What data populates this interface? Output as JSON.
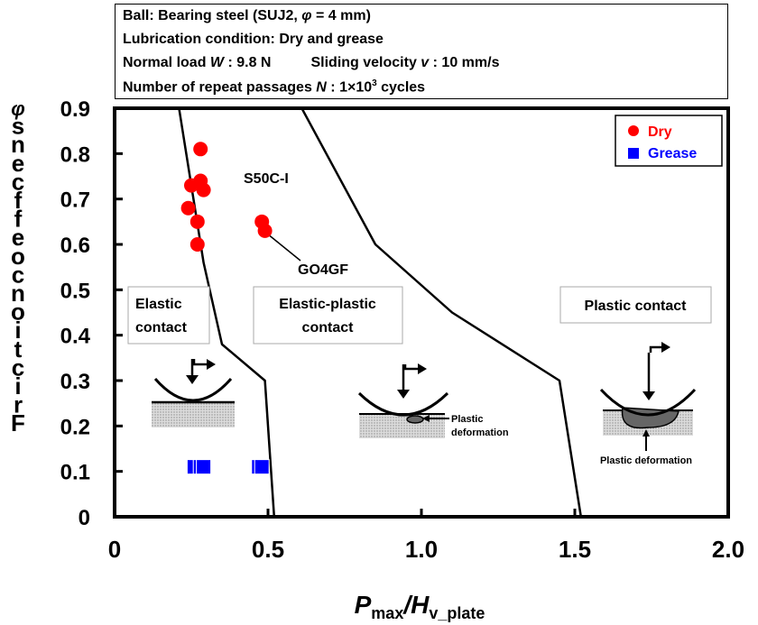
{
  "header": {
    "line1_a": "Ball: Bearing steel (SUJ2, ",
    "line1_sym": "φ",
    "line1_b": " = 4 mm)",
    "line2": "Lubrication condition: Dry and grease",
    "line3_load": "Normal load ",
    "line3_load_sym": "W",
    "line3_load_val": " : 9.8 N",
    "line3_vel": "Sliding velocity ",
    "line3_vel_sym": "v",
    "line3_vel_val": " : 10 mm/s",
    "line4_a": "Number of repeat passages ",
    "line4_sym": "N",
    "line4_b": " : 1×10",
    "line4_sup": "3",
    "line4_c": " cycles"
  },
  "colors": {
    "dry": "#ff0000",
    "grease": "#0000ff",
    "boundary": "#000000"
  },
  "chart_data": {
    "type": "scatter",
    "ylabel_glyphs": [
      "φ",
      "s",
      "n",
      "e",
      "c",
      "f",
      "f",
      "e",
      "o",
      "c",
      "n",
      "o",
      "i",
      "t",
      "c",
      "i",
      "r",
      "F"
    ],
    "xlabel": {
      "main": "P",
      "sub1": "max",
      "slash": "/H",
      "sub2": "v_plate"
    },
    "xlim": [
      0,
      2.0
    ],
    "ylim": [
      0,
      0.9
    ],
    "x_ticks": [
      "0",
      "0.5",
      "1.0",
      "1.5",
      "2.0"
    ],
    "y_ticks": [
      "0",
      "0.1",
      "0.2",
      "0.3",
      "0.4",
      "0.5",
      "0.6",
      "0.7",
      "0.8",
      "0.9"
    ],
    "legend_position": "top-right",
    "series": [
      {
        "name": "Dry",
        "marker": "circle",
        "points": [
          [
            0.28,
            0.81
          ],
          [
            0.28,
            0.74
          ],
          [
            0.29,
            0.72
          ],
          [
            0.25,
            0.73
          ],
          [
            0.24,
            0.68
          ],
          [
            0.27,
            0.65
          ],
          [
            0.27,
            0.6
          ],
          [
            0.48,
            0.65
          ],
          [
            0.49,
            0.63
          ]
        ]
      },
      {
        "name": "Grease",
        "marker": "square",
        "points": [
          [
            0.26,
            0.11
          ],
          [
            0.28,
            0.11
          ],
          [
            0.29,
            0.11
          ],
          [
            0.47,
            0.11
          ],
          [
            0.48,
            0.11
          ]
        ]
      }
    ],
    "boundaries": [
      [
        [
          0.21,
          0.9
        ],
        [
          0.29,
          0.56
        ],
        [
          0.35,
          0.38
        ],
        [
          0.49,
          0.3
        ],
        [
          0.52,
          0.0
        ]
      ],
      [
        [
          0.61,
          0.9
        ],
        [
          0.85,
          0.6
        ],
        [
          1.1,
          0.45
        ],
        [
          1.45,
          0.3
        ],
        [
          1.52,
          0.0
        ]
      ]
    ],
    "annotations": {
      "s50c": "S50C-I",
      "go4gf": "GO4GF",
      "elastic_1": "Elastic",
      "elastic_2": "contact",
      "ep_1": "Elastic-plastic",
      "ep_2": "contact",
      "plastic": "Plastic contact",
      "plastic_def_1": "Plastic",
      "plastic_def_2": "deformation",
      "plastic_def_full": "Plastic deformation"
    }
  }
}
